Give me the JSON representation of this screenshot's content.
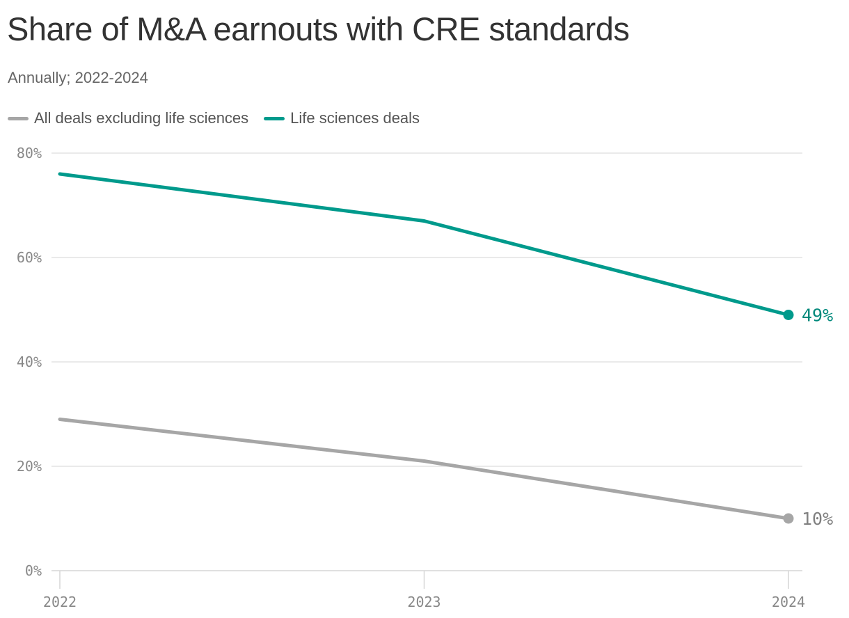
{
  "chart_data": {
    "type": "line",
    "title": "Share of M&A earnouts with CRE standards",
    "subtitle": "Annually; 2022-2024",
    "xlabel": "",
    "ylabel": "",
    "x": [
      "2022",
      "2023",
      "2024"
    ],
    "ylim": [
      0,
      80
    ],
    "yticks": [
      0,
      20,
      40,
      60,
      80
    ],
    "ytick_labels": [
      "0%",
      "20%",
      "40%",
      "60%",
      "80%"
    ],
    "grid": true,
    "legend_position": "top-left",
    "series": [
      {
        "name": "All deals excluding life sciences",
        "color": "#a6a6a6",
        "values": [
          29,
          21,
          10
        ],
        "end_label": "10%"
      },
      {
        "name": "Life sciences deals",
        "color": "#009a8c",
        "values": [
          76,
          67,
          49
        ],
        "end_label": "49%"
      }
    ]
  }
}
